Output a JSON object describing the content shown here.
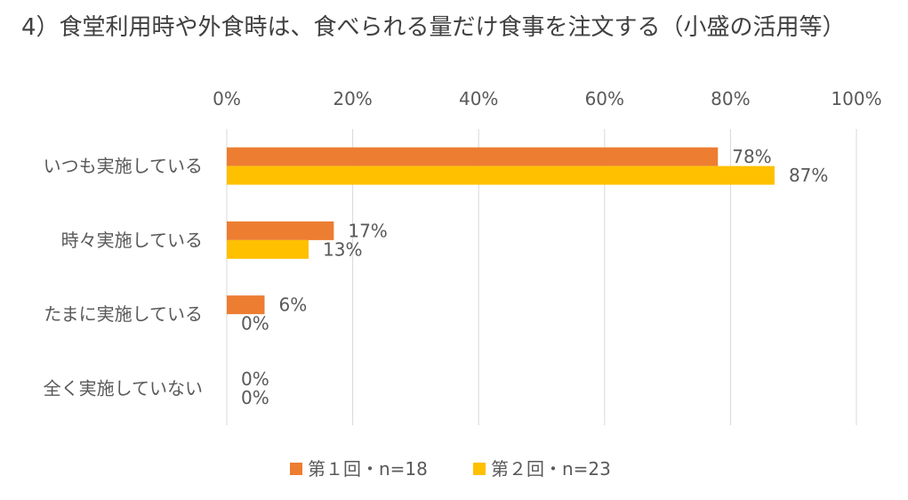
{
  "chart_data": {
    "type": "bar",
    "orientation": "horizontal",
    "title": "4）食堂利用時や外食時は、食べられる量だけ食事を注文する（小盛の活用等）",
    "categories": [
      "いつも実施している",
      "時々実施している",
      "たまに実施している",
      "全く実施していない"
    ],
    "series": [
      {
        "name": "第１回・n=18",
        "values": [
          78,
          17,
          6,
          0
        ],
        "color": "#ED7D31"
      },
      {
        "name": "第２回・n=23",
        "values": [
          87,
          13,
          0,
          0
        ],
        "color": "#FFC000"
      }
    ],
    "xlim": [
      0,
      100
    ],
    "ticks": [
      "0%",
      "20%",
      "40%",
      "60%",
      "80%",
      "100%"
    ],
    "value_suffix": "%",
    "grid": true,
    "legend_position": "bottom"
  }
}
